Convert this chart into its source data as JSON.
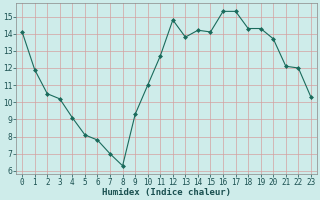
{
  "x": [
    0,
    1,
    2,
    3,
    4,
    5,
    6,
    7,
    8,
    9,
    10,
    11,
    12,
    13,
    14,
    15,
    16,
    17,
    18,
    19,
    20,
    21,
    22,
    23
  ],
  "y": [
    14.1,
    11.9,
    10.5,
    10.2,
    9.1,
    8.1,
    7.8,
    7.0,
    6.3,
    9.3,
    11.0,
    12.7,
    14.8,
    13.8,
    14.2,
    14.1,
    15.3,
    15.3,
    14.3,
    14.3,
    13.7,
    12.1,
    12.0,
    10.3
  ],
  "xlabel": "Humidex (Indice chaleur)",
  "xlim": [
    -0.5,
    23.5
  ],
  "ylim": [
    5.8,
    15.8
  ],
  "yticks": [
    6,
    7,
    8,
    9,
    10,
    11,
    12,
    13,
    14,
    15
  ],
  "xticks": [
    0,
    1,
    2,
    3,
    4,
    5,
    6,
    7,
    8,
    9,
    10,
    11,
    12,
    13,
    14,
    15,
    16,
    17,
    18,
    19,
    20,
    21,
    22,
    23
  ],
  "line_color": "#1a6b5c",
  "marker": "D",
  "marker_size": 2.0,
  "bg_color": "#ceecea",
  "grid_color_major": "#d4a0a0",
  "grid_color_minor": "#ceecea",
  "fig_bg": "#ceecea"
}
